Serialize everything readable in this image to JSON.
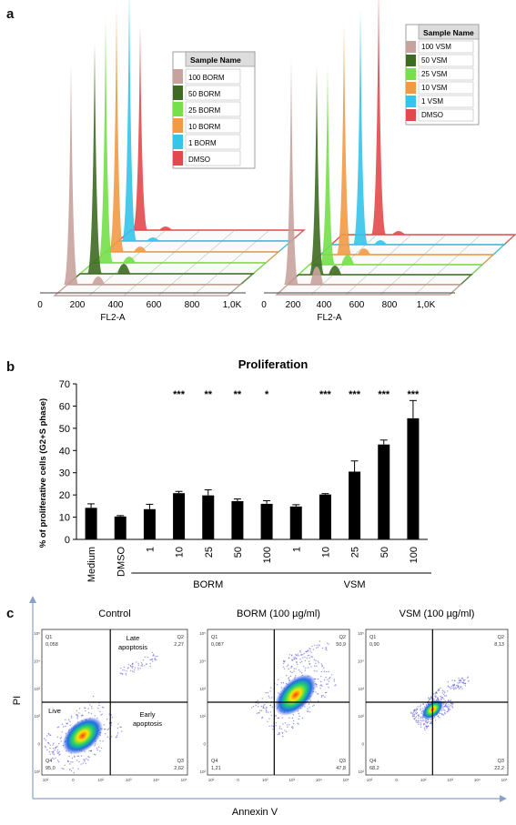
{
  "figure": {
    "panels": {
      "a": {
        "letter": "a",
        "left_chart": {
          "legend_title": "Sample Name",
          "legend": [
            {
              "label": "100 BORM",
              "color": "#c8a29c"
            },
            {
              "label": "50 BORM",
              "color": "#3e6b22"
            },
            {
              "label": "25 BORM",
              "color": "#76df4a"
            },
            {
              "label": "10 BORM",
              "color": "#f19a46"
            },
            {
              "label": "1 BORM",
              "color": "#35c4ea"
            },
            {
              "label": "DMSO",
              "color": "#e2494d"
            }
          ],
          "xticks": [
            "0",
            "200",
            "400",
            "600",
            "800",
            "1,0K"
          ],
          "xlabel": "FL2-A"
        },
        "right_chart": {
          "legend_title": "Sample Name",
          "legend": [
            {
              "label": "100 VSM",
              "color": "#c8a29c"
            },
            {
              "label": "50 VSM",
              "color": "#3e6b22"
            },
            {
              "label": "25 VSM",
              "color": "#76df4a"
            },
            {
              "label": "10 VSM",
              "color": "#f19a46"
            },
            {
              "label": "1 VSM",
              "color": "#35c4ea"
            },
            {
              "label": "DMSO",
              "color": "#e2494d"
            }
          ],
          "xticks": [
            "0",
            "200",
            "400",
            "600",
            "800",
            "1,0K"
          ],
          "xlabel": "FL2-A"
        }
      },
      "b": {
        "letter": "b",
        "title": "Proliferation",
        "ylabel": "% of proliferative cells (G2+S phase)",
        "yticks": [
          "0",
          "10",
          "20",
          "30",
          "40",
          "50",
          "60",
          "70"
        ],
        "group_labels": [
          "BORM",
          "VSM"
        ],
        "significance_marks": [
          "***",
          "**",
          "**",
          "*",
          "***",
          "***",
          "***",
          "***"
        ]
      },
      "c": {
        "letter": "c",
        "ylabel": "PI",
        "xlabel": "Annexin V",
        "plots": [
          {
            "title": "Control",
            "q1": "Q1",
            "q1_val": "0,058",
            "q2": "Q2",
            "q2_val": "2,27",
            "q3": "Q3",
            "q3_val": "2,62",
            "q4": "Q4",
            "q4_val": "95,0",
            "labels": [
              "Late",
              "apoptosis",
              "Live",
              "Early",
              "apoptosis"
            ]
          },
          {
            "title": "BORM (100 µg/ml)",
            "q1": "Q1",
            "q1_val": "0,087",
            "q2": "Q2",
            "q2_val": "50,9",
            "q3": "Q3",
            "q3_val": "47,8",
            "q4": "Q4",
            "q4_val": "1,21"
          },
          {
            "title": "VSM (100 µg/ml)",
            "q1": "Q1",
            "q1_val": "0,90",
            "q2": "Q2",
            "q2_val": "8,13",
            "q3": "Q3",
            "q3_val": "22,2",
            "q4": "Q4",
            "q4_val": "68,2"
          }
        ],
        "axis_ticks": {
          "y": [
            "10⁵",
            "10⁴",
            "10³",
            "10²",
            "0",
            "10²"
          ],
          "x": [
            "10²",
            "0",
            "10²",
            "10³",
            "10⁴",
            "10⁵"
          ]
        }
      }
    }
  },
  "chart_data": {
    "type": "bar",
    "categories": [
      "Medium",
      "DMSO",
      "1",
      "10",
      "25",
      "50",
      "100",
      "1",
      "10",
      "25",
      "50",
      "100"
    ],
    "values": [
      14.2,
      10.3,
      13.6,
      20.8,
      19.8,
      17.2,
      16.0,
      14.8,
      20.2,
      30.5,
      42.7,
      54.5
    ],
    "errors": [
      1.8,
      0.4,
      2.2,
      0.8,
      2.5,
      1.0,
      1.4,
      0.8,
      0.4,
      4.8,
      2.0,
      8.0
    ],
    "significance": [
      "",
      "",
      "",
      "***",
      "**",
      "**",
      "*",
      "",
      "***",
      "***",
      "***",
      "***"
    ],
    "groups": [
      {
        "name": "BORM",
        "from": 2,
        "to": 6
      },
      {
        "name": "VSM",
        "from": 7,
        "to": 11
      }
    ],
    "title": "Proliferation",
    "xlabel": "",
    "ylabel": "% of proliferative cells (G2+S phase)",
    "ylim": [
      0,
      70
    ],
    "bar_color": "#000000"
  }
}
